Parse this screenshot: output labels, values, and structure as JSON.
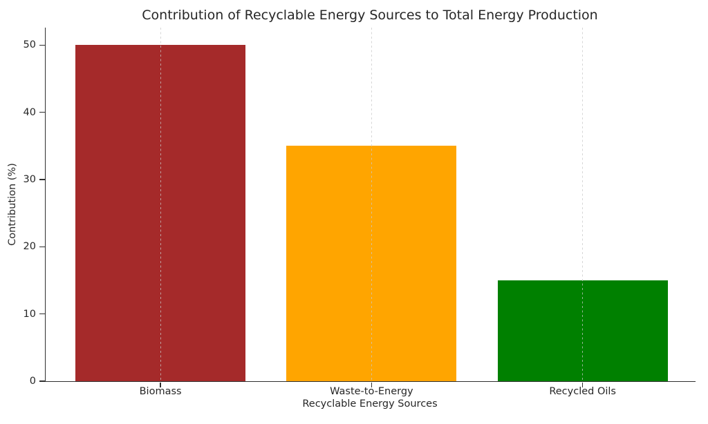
{
  "chart_data": {
    "type": "bar",
    "title": "Contribution of Recyclable Energy Sources to Total Energy Production",
    "xlabel": "Recyclable Energy Sources",
    "ylabel": "Contribution (%)",
    "categories": [
      "Biomass",
      "Waste-to-Energy",
      "Recycled Oils"
    ],
    "values": [
      50,
      35,
      15
    ],
    "bar_colors": [
      "#A52A2A",
      "#FFA500",
      "#008000"
    ],
    "yticks": [
      0,
      10,
      20,
      30,
      40,
      50
    ],
    "ylim": [
      0,
      52.6
    ],
    "grid": "vertical-dashed-at-bar-centers",
    "legend_position": "none",
    "background_color": "#ffffff",
    "text_color": "#262626"
  }
}
